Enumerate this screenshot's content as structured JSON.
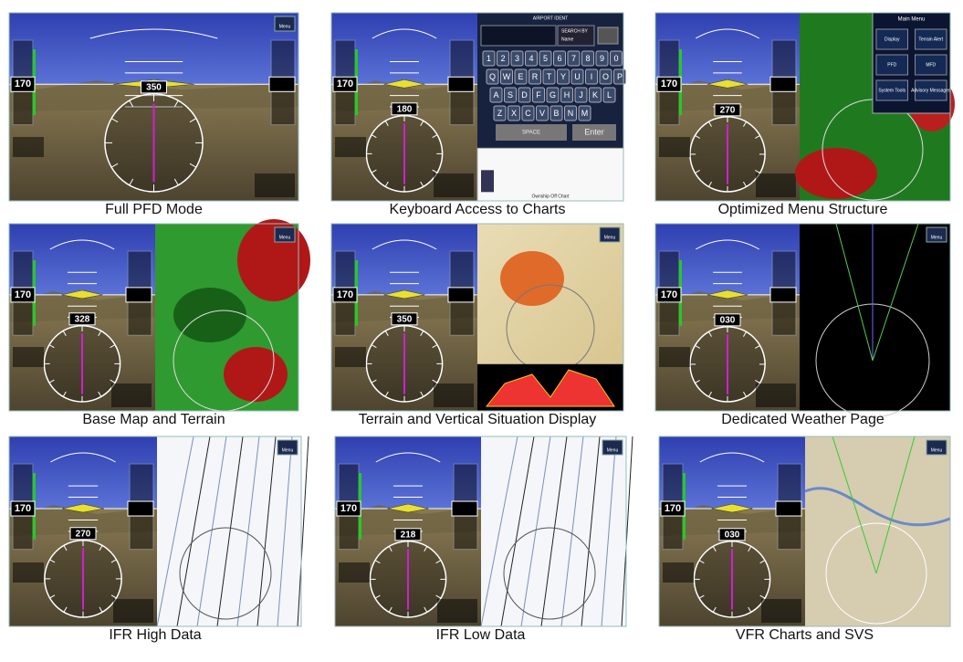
{
  "panels": [
    {
      "caption": "Full PFD Mode",
      "heading": "350"
    },
    {
      "caption": "Keyboard Access to Charts",
      "heading": "180"
    },
    {
      "caption": "Optimized Menu Structure",
      "heading": "270"
    },
    {
      "caption": "Base Map and Terrain",
      "heading": "328"
    },
    {
      "caption": "Terrain and Vertical Situation Display",
      "heading": "350"
    },
    {
      "caption": "Dedicated Weather Page",
      "heading": "030"
    },
    {
      "caption": "IFR High Data",
      "heading": "270"
    },
    {
      "caption": "IFR Low Data",
      "heading": "218"
    },
    {
      "caption": "VFR Charts and SVS",
      "heading": "030"
    }
  ],
  "airspeed": "170",
  "menu_button": "Menu",
  "keyboard": {
    "title": "AIRPORT IDENT",
    "search_label": "SEARCH BY",
    "search_value": "Name",
    "rows": [
      [
        "1",
        "2",
        "3",
        "4",
        "5",
        "6",
        "7",
        "8",
        "9",
        "0"
      ],
      [
        "Q",
        "W",
        "E",
        "R",
        "T",
        "Y",
        "U",
        "I",
        "O",
        "P"
      ],
      [
        "A",
        "S",
        "D",
        "F",
        "G",
        "H",
        "J",
        "K",
        "L"
      ],
      [
        "Z",
        "X",
        "C",
        "V",
        "B",
        "N",
        "M"
      ]
    ],
    "space": "SPACE",
    "enter": "Enter",
    "footer": "Ownship Off Chart"
  },
  "main_menu": {
    "title": "Main Menu",
    "items": [
      "Display",
      "Terrain Alert",
      "PFD",
      "MFD",
      "System Tools",
      "Advisory Messages"
    ]
  }
}
